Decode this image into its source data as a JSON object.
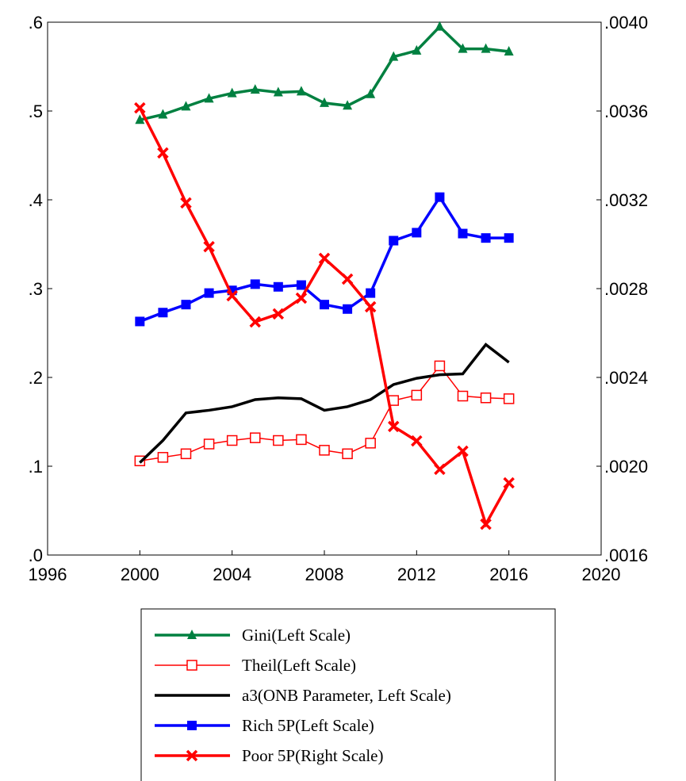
{
  "chart_data": {
    "type": "line",
    "x": [
      2000,
      2001,
      2002,
      2003,
      2004,
      2005,
      2006,
      2007,
      2008,
      2009,
      2010,
      2011,
      2012,
      2013,
      2014,
      2015,
      2016
    ],
    "xlim": [
      1996,
      2020
    ],
    "xticks": [
      1996,
      2000,
      2004,
      2008,
      2012,
      2016,
      2020
    ],
    "ylim": [
      0,
      0.6
    ],
    "yticks": [
      {
        "value": 0,
        "label": ".0"
      },
      {
        "value": 0.1,
        "label": ".1"
      },
      {
        "value": 0.2,
        "label": ".2"
      },
      {
        "value": 0.3,
        "label": ".3"
      },
      {
        "value": 0.4,
        "label": ".4"
      },
      {
        "value": 0.5,
        "label": ".5"
      },
      {
        "value": 0.6,
        "label": ".6"
      }
    ],
    "y2lim": [
      0.0016,
      0.004
    ],
    "y2ticks": [
      {
        "value": 0.0016,
        "label": ".0016"
      },
      {
        "value": 0.002,
        "label": ".0020"
      },
      {
        "value": 0.0024,
        "label": ".0024"
      },
      {
        "value": 0.0028,
        "label": ".0028"
      },
      {
        "value": 0.0032,
        "label": ".0032"
      },
      {
        "value": 0.0036,
        "label": ".0036"
      },
      {
        "value": 0.004,
        "label": ".0040"
      }
    ],
    "series": [
      {
        "name": "Gini(Left Scale)",
        "color": "#008040",
        "marker": "triangle",
        "values": [
          0.49,
          0.496,
          0.505,
          0.514,
          0.52,
          0.524,
          0.521,
          0.522,
          0.509,
          0.506,
          0.519,
          0.561,
          0.568,
          0.595,
          0.57,
          0.57,
          0.567
        ]
      },
      {
        "name": "Theil(Left Scale)",
        "color": "#ff0000",
        "marker": "open-square",
        "values": [
          0.106,
          0.11,
          0.114,
          0.125,
          0.129,
          0.132,
          0.129,
          0.13,
          0.118,
          0.114,
          0.126,
          0.174,
          0.18,
          0.213,
          0.179,
          0.177,
          0.176
        ]
      },
      {
        "name": "a3(ONB Parameter, Left Scale)",
        "color": "#000000",
        "marker": "none",
        "values": [
          0.104,
          0.129,
          0.16,
          0.163,
          0.167,
          0.175,
          0.177,
          0.176,
          0.163,
          0.167,
          0.175,
          0.192,
          0.199,
          0.203,
          0.204,
          0.237,
          0.217
        ]
      },
      {
        "name": "Rich 5P(Left Scale)",
        "color": "#0000ff",
        "marker": "square",
        "values": [
          0.263,
          0.273,
          0.282,
          0.295,
          0.298,
          0.305,
          0.302,
          0.304,
          0.282,
          0.277,
          0.295,
          0.354,
          0.363,
          0.403,
          0.362,
          0.357,
          0.357
        ]
      },
      {
        "name": "Poor 5P(Right Scale)",
        "color": "#ff0000",
        "marker": "x",
        "axis": "y2",
        "values": [
          0.003614,
          0.003411,
          0.003186,
          0.002989,
          0.002768,
          0.00265,
          0.002686,
          0.002757,
          0.002936,
          0.002843,
          0.002718,
          0.002179,
          0.002114,
          0.001986,
          0.002068,
          0.001739,
          0.001925
        ]
      }
    ]
  }
}
